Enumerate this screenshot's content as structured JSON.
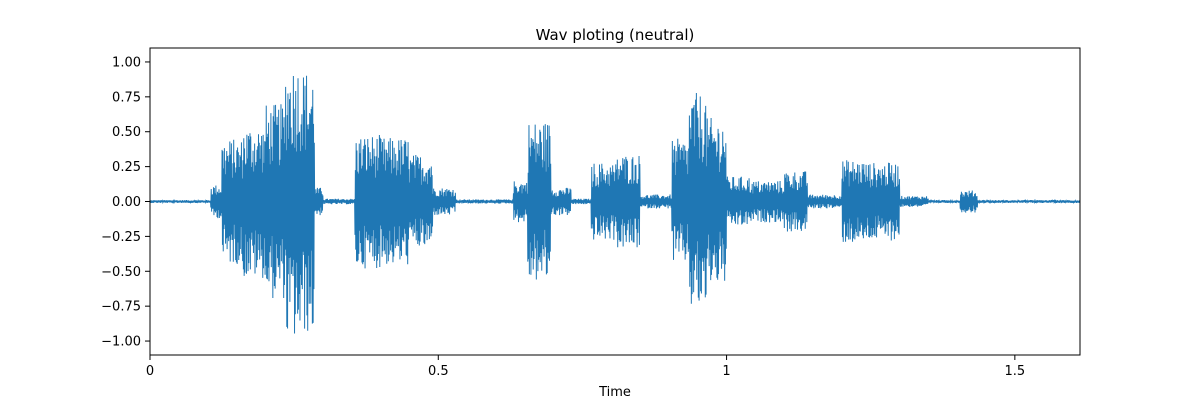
{
  "chart_data": {
    "type": "line",
    "title": "Wav ploting (neutral)",
    "xlabel": "Time",
    "ylabel": "",
    "xlim": [
      0,
      1.613
    ],
    "ylim": [
      -1.1,
      1.1
    ],
    "xticks": [
      0,
      0.5,
      1,
      1.5
    ],
    "xtick_labels": [
      "0",
      "0.5",
      "1",
      "1.5"
    ],
    "yticks": [
      1.0,
      0.75,
      0.5,
      0.25,
      0.0,
      -0.25,
      -0.5,
      -0.75,
      -1.0
    ],
    "ytick_labels": [
      "1.00",
      "0.75",
      "0.50",
      "0.25",
      "0.00",
      "−0.25",
      "−0.50",
      "−0.75",
      "−1.00"
    ],
    "grid": false,
    "legend": "none",
    "series": [
      {
        "color": "#1f77b4",
        "description": "audio waveform amplitude envelope (sampled)",
        "segments": [
          {
            "x0": 0.0,
            "x1": 0.105,
            "amp": 0.01
          },
          {
            "x0": 0.105,
            "x1": 0.125,
            "amp": 0.12
          },
          {
            "x0": 0.125,
            "x1": 0.16,
            "amp": 0.45
          },
          {
            "x0": 0.16,
            "x1": 0.2,
            "amp": 0.55
          },
          {
            "x0": 0.2,
            "x1": 0.235,
            "amp": 0.7
          },
          {
            "x0": 0.235,
            "x1": 0.265,
            "amp": 1.0
          },
          {
            "x0": 0.265,
            "x1": 0.285,
            "amp": 0.95
          },
          {
            "x0": 0.285,
            "x1": 0.3,
            "amp": 0.1
          },
          {
            "x0": 0.3,
            "x1": 0.355,
            "amp": 0.02
          },
          {
            "x0": 0.355,
            "x1": 0.4,
            "amp": 0.48
          },
          {
            "x0": 0.4,
            "x1": 0.45,
            "amp": 0.46
          },
          {
            "x0": 0.45,
            "x1": 0.49,
            "amp": 0.34
          },
          {
            "x0": 0.49,
            "x1": 0.53,
            "amp": 0.1
          },
          {
            "x0": 0.53,
            "x1": 0.63,
            "amp": 0.015
          },
          {
            "x0": 0.63,
            "x1": 0.655,
            "amp": 0.15
          },
          {
            "x0": 0.655,
            "x1": 0.695,
            "amp": 0.58
          },
          {
            "x0": 0.695,
            "x1": 0.73,
            "amp": 0.1
          },
          {
            "x0": 0.73,
            "x1": 0.765,
            "amp": 0.02
          },
          {
            "x0": 0.765,
            "x1": 0.81,
            "amp": 0.28
          },
          {
            "x0": 0.81,
            "x1": 0.85,
            "amp": 0.34
          },
          {
            "x0": 0.85,
            "x1": 0.905,
            "amp": 0.05
          },
          {
            "x0": 0.905,
            "x1": 0.935,
            "amp": 0.45
          },
          {
            "x0": 0.935,
            "x1": 0.965,
            "amp": 0.78
          },
          {
            "x0": 0.965,
            "x1": 1.0,
            "amp": 0.6
          },
          {
            "x0": 1.0,
            "x1": 1.04,
            "amp": 0.18
          },
          {
            "x0": 1.04,
            "x1": 1.1,
            "amp": 0.15
          },
          {
            "x0": 1.1,
            "x1": 1.14,
            "amp": 0.22
          },
          {
            "x0": 1.14,
            "x1": 1.2,
            "amp": 0.05
          },
          {
            "x0": 1.2,
            "x1": 1.24,
            "amp": 0.3
          },
          {
            "x0": 1.24,
            "x1": 1.3,
            "amp": 0.28
          },
          {
            "x0": 1.3,
            "x1": 1.35,
            "amp": 0.04
          },
          {
            "x0": 1.35,
            "x1": 1.405,
            "amp": 0.01
          },
          {
            "x0": 1.405,
            "x1": 1.435,
            "amp": 0.08
          },
          {
            "x0": 1.435,
            "x1": 1.613,
            "amp": 0.01
          }
        ]
      }
    ]
  }
}
